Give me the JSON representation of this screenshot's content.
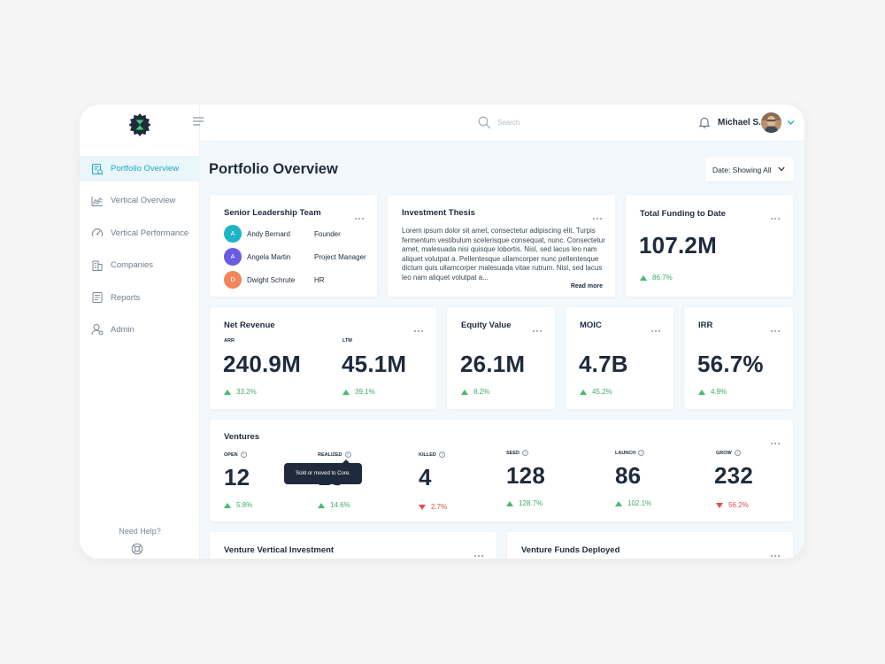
{
  "sidebar": {
    "items": [
      {
        "label": "Portfolio Overview",
        "icon": "portfolio-icon",
        "active": true
      },
      {
        "label": "Vertical Overview",
        "icon": "chart-line-icon",
        "active": false
      },
      {
        "label": "Vertical Performance",
        "icon": "gauge-icon",
        "active": false
      },
      {
        "label": "Companies",
        "icon": "building-icon",
        "active": false
      },
      {
        "label": "Reports",
        "icon": "report-icon",
        "active": false
      },
      {
        "label": "Admin",
        "icon": "user-gear-icon",
        "active": false
      }
    ],
    "help": "Need Help?"
  },
  "topbar": {
    "search_placeholder": "Search",
    "user_name": "Michael S."
  },
  "main": {
    "title": "Portfolio Overview",
    "date_filter": "Date: Showing All"
  },
  "leadership": {
    "title": "Senior Leadership Team",
    "people": [
      {
        "initial": "A",
        "name": "Andy Bernard",
        "role": "Founder",
        "color": "#1fb3c9"
      },
      {
        "initial": "A",
        "name": "Angela Martin",
        "role": "Project Manager",
        "color": "#6a5ce0"
      },
      {
        "initial": "D",
        "name": "Dwight Schrute",
        "role": "HR",
        "color": "#f0845b"
      }
    ]
  },
  "thesis": {
    "title": "Investment Thesis",
    "text": "Lorem ipsum dolor sit amet, consectetur adipiscing elit. Turpis fermentum vestibulum scelerisque consequat, nunc. Consectetur amet, malesuada nisi quisque lobortis. Nisl, sed lacus leo nam aliquet volutpat a. Pellentesque ullamcorper nunc pellentesque dictum quis ullamcorper malesuada vitae rutrum. Nisl, sed lacus leo nam aliquet volutpat a...",
    "read_more": "Read more"
  },
  "funding": {
    "title": "Total Funding to Date",
    "value": "107.2M",
    "delta": "86.7%"
  },
  "net_revenue": {
    "title": "Net Revenue",
    "arr_label": "ARR",
    "arr_value": "240.9M",
    "arr_delta": "33.2%",
    "ltm_label": "LTM",
    "ltm_value": "45.1M",
    "ltm_delta": "39.1%"
  },
  "equity": {
    "title": "Equity Value",
    "value": "26.1M",
    "delta": "8.2%"
  },
  "moic": {
    "title": "MOIC",
    "value": "4.7B",
    "delta": "45.2%"
  },
  "irr": {
    "title": "IRR",
    "value": "56.7%",
    "delta": "4.9%"
  },
  "ventures": {
    "title": "Ventures",
    "items": [
      {
        "label": "OPEN",
        "value": "12",
        "delta": "5.8%",
        "dir": "up"
      },
      {
        "label": "REALIZED",
        "value": "15",
        "delta": "14.6%",
        "dir": "up"
      },
      {
        "label": "KILLED",
        "value": "4",
        "delta": "2.7%",
        "dir": "down"
      },
      {
        "label": "SEED",
        "value": "128",
        "delta": "128.7%",
        "dir": "up"
      },
      {
        "label": "LAUNCH",
        "value": "86",
        "delta": "102.1%",
        "dir": "up"
      },
      {
        "label": "GROW",
        "value": "232",
        "delta": "56.2%",
        "dir": "down"
      }
    ],
    "tooltip": "Sold or moved to Core."
  },
  "vertical_investment": {
    "title": "Venture Vertical Investment"
  },
  "funds_deployed": {
    "title": "Venture Funds Deployed"
  },
  "colors": {
    "accent": "#1fa9c4",
    "up": "#46bb6b",
    "down": "#e34b4b"
  }
}
